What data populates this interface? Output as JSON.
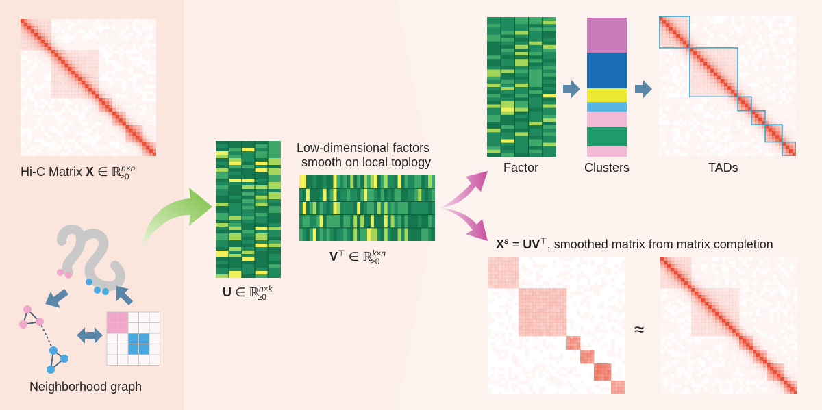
{
  "labels": {
    "hic_label_prefix": "Hi-C Matrix",
    "hic_bold": "X",
    "hic_set": "∈ ℝ",
    "hic_sub": "≥0",
    "hic_sup": "n×n",
    "neighborhood_label": "Neighborhood graph",
    "u_bold": "U",
    "u_set": "∈ ℝ",
    "u_sub": "≥0",
    "u_sup": "n×k",
    "factors_line1": "Low-dimensional factors",
    "factors_line2": "smooth on local toplogy",
    "v_bold": "V",
    "v_top": "⊤",
    "v_set": "∈ ℝ",
    "v_sub": "≥0",
    "v_sup": "k×n",
    "factor_label": "Factor",
    "clusters_label": "Clusters",
    "tads_label": "TADs",
    "xs_bold": "X",
    "xs_sup": "s",
    "xs_eq": " = ",
    "xs_uv": "UV",
    "xs_top": "⊤",
    "xs_rest": ", smoothed matrix from matrix completion",
    "approx": "≈"
  },
  "colors": {
    "heat_red": "#e8452c",
    "factor_green": "#1f8a5e",
    "factor_yellow": "#f2f05a",
    "tad_box": "#2aa8d8",
    "arrow_blue": "#5a86a8",
    "graph_pink": "#f0a6c8",
    "graph_blue": "#4aa8e0",
    "arrow_green": "#8cc63f",
    "arrow_magenta": "#d060b0"
  },
  "clusters": [
    "#c77bb8",
    "#1a6cb4",
    "#ecea30",
    "#5ab4e6",
    "#f2b8d6",
    "#1f9b6c",
    "#f2b8d6"
  ],
  "icons": [
    "double-arrow-icon",
    "chromatin-strand-icon",
    "graph-node-icon",
    "adjacency-grid-icon"
  ]
}
